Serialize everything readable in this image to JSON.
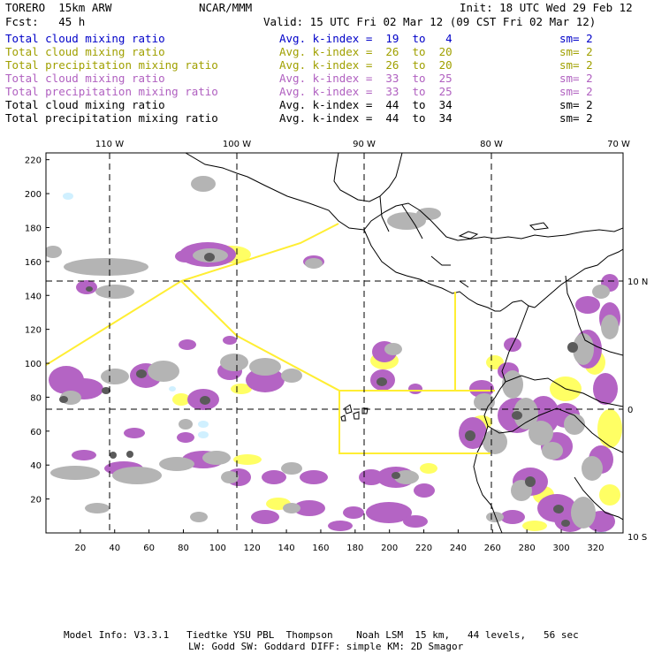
{
  "header": {
    "model": "TORERO  15km ARW",
    "center": "NCAR/MMM",
    "init": "Init: 18 UTC Wed 29 Feb 12",
    "fcst": "Fcst:   45 h",
    "valid": "Valid: 15 UTC Fri 02 Mar 12 (09 CST Fri 02 Mar 12)"
  },
  "legend": [
    {
      "field": "Total cloud mixing ratio",
      "k": "Avg. k-index =  19  to   4",
      "sm": "sm= 2",
      "color": "#0000c8"
    },
    {
      "field": "Total cloud mixing ratio",
      "k": "Avg. k-index =  26  to  20",
      "sm": "sm= 2",
      "color": "#a0a000"
    },
    {
      "field": "Total precipitation mixing ratio",
      "k": "Avg. k-index =  26  to  20",
      "sm": "sm= 2",
      "color": "#a0a000"
    },
    {
      "field": "Total cloud mixing ratio",
      "k": "Avg. k-index =  33  to  25",
      "sm": "sm= 2",
      "color": "#b060c0"
    },
    {
      "field": "Total precipitation mixing ratio",
      "k": "Avg. k-index =  33  to  25",
      "sm": "sm= 2",
      "color": "#b060c0"
    },
    {
      "field": "Total cloud mixing ratio",
      "k": "Avg. k-index =  44  to  34",
      "sm": "sm= 2",
      "color": "#000000"
    },
    {
      "field": "Total precipitation mixing ratio",
      "k": "Avg. k-index =  44  to  34",
      "sm": "sm= 2",
      "color": "#000000"
    }
  ],
  "map": {
    "lon_labels": [
      "110 W",
      "100 W",
      "90 W",
      "80 W",
      "70 W"
    ],
    "lat_labels": [
      "10 N",
      "0",
      "10 S"
    ],
    "x_ticks": [
      "20",
      "40",
      "60",
      "80",
      "100",
      "120",
      "140",
      "160",
      "180",
      "200",
      "220",
      "240",
      "260",
      "280",
      "300",
      "320"
    ],
    "y_ticks": [
      "220",
      "200",
      "180",
      "160",
      "140",
      "120",
      "100",
      "80",
      "60",
      "40",
      "20"
    ],
    "colors": {
      "cloud_light": "#b4b4b4",
      "cloud_dark": "#5a5a5a",
      "precip_purple": "#b464c4",
      "precip_yellow": "#ffff64",
      "light_blue": "#d0f0ff",
      "box_line": "#ffee33"
    }
  },
  "footer": {
    "line1": "Model Info: V3.3.1   Tiedtke YSU PBL  Thompson    Noah LSM  15 km,   44 levels,   56 sec",
    "line2": "LW: Godd SW: Goddard DIFF: simple KM: 2D Smagor"
  }
}
